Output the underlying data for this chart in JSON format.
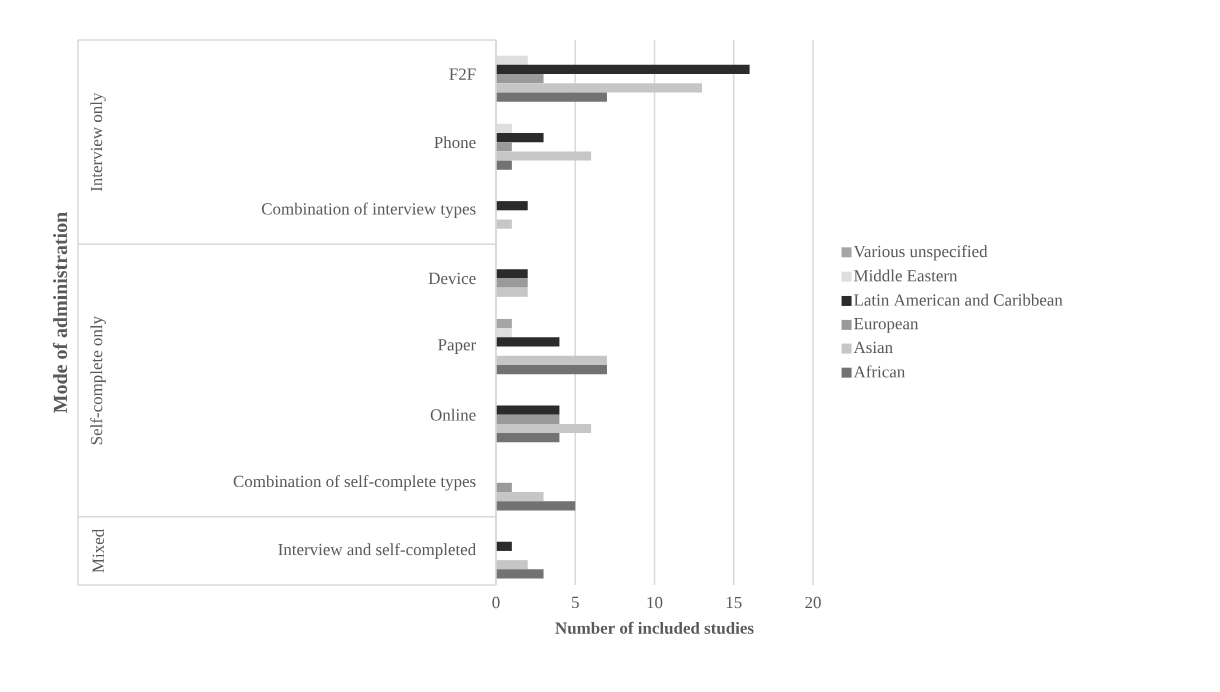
{
  "chart_data": {
    "type": "bar",
    "orientation": "horizontal",
    "xlabel": "Number of included studies",
    "categories": [
      "F2F",
      "Phone",
      "Combination of interview types",
      "Device",
      "Paper",
      "Online",
      "Combination of self-complete types",
      "Interview and self-completed"
    ],
    "series": [
      {
        "name": "Various unspecified",
        "color": "#a5a5a5",
        "values": [
          0,
          0,
          0,
          0,
          1,
          0,
          0,
          0
        ]
      },
      {
        "name": "Middle Eastern",
        "color": "#dedede",
        "values": [
          2,
          1,
          0,
          0,
          1,
          0,
          0,
          0
        ]
      },
      {
        "name": "Latin American and Caribbean",
        "color": "#2b2b2b",
        "values": [
          16,
          3,
          2,
          2,
          4,
          4,
          0,
          1
        ]
      },
      {
        "name": "European",
        "color": "#9a9a9a",
        "values": [
          3,
          1,
          0,
          2,
          0,
          4,
          1,
          0
        ]
      },
      {
        "name": "Asian",
        "color": "#c6c6c6",
        "values": [
          13,
          6,
          1,
          2,
          7,
          6,
          3,
          2
        ]
      },
      {
        "name": "African",
        "color": "#727272",
        "values": [
          7,
          1,
          0,
          0,
          7,
          4,
          5,
          3
        ]
      }
    ],
    "annotations": [
      "Interview only",
      "Self-complete only",
      "Mixed",
      "Mode of administration"
    ],
    "xlim": [
      0,
      20
    ],
    "xticks": [
      0,
      5,
      10,
      15,
      20
    ],
    "grid": "x",
    "legend": "right"
  }
}
